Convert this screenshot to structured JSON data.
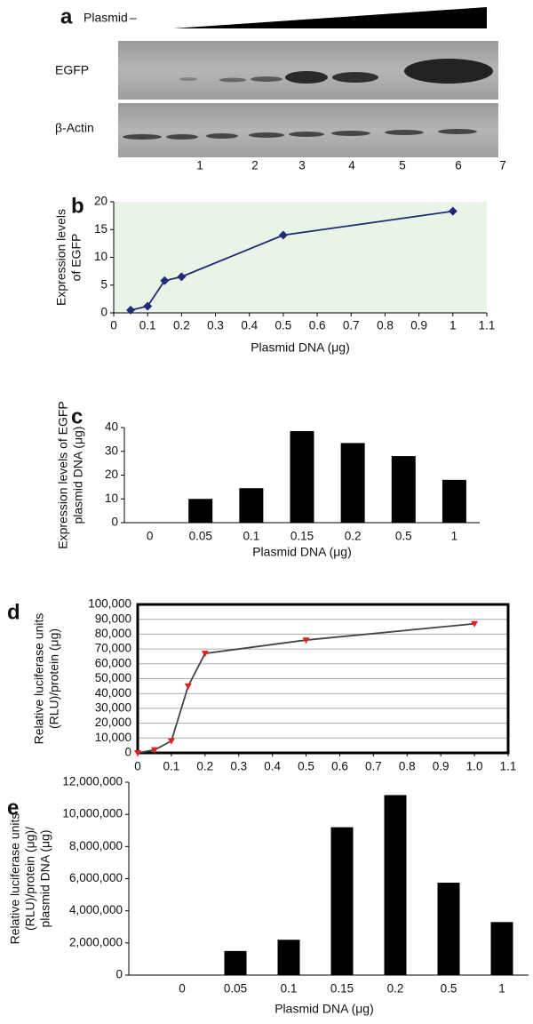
{
  "blot": {
    "label": "a",
    "plasmid": "Plasmid",
    "minus": "–",
    "rows": [
      "EGFP",
      "β-Actin"
    ],
    "lanes": [
      1,
      2,
      3,
      4,
      5,
      6,
      7
    ]
  },
  "chart_data": [
    {
      "type": "line",
      "label": "b",
      "ylabel": [
        "Expression levels",
        "of EGFP"
      ],
      "xlabel": "Plasmid DNA (μg)",
      "x": [
        0.05,
        0.1,
        0.15,
        0.2,
        0.5,
        1
      ],
      "values": [
        0.5,
        1.2,
        5.8,
        6.5,
        14,
        18.3
      ],
      "color": "#1f2a7a",
      "marker_color": "#1f2a7a",
      "marker": "diamond",
      "background": "#eaf4e6",
      "xlim": [
        0,
        1.1
      ],
      "xticks": [
        0,
        0.1,
        0.2,
        0.3,
        0.4,
        0.5,
        0.6,
        0.7,
        0.8,
        0.9,
        1,
        1.1
      ],
      "ylim": [
        0,
        20
      ],
      "yticks": [
        0,
        5,
        10,
        15,
        20
      ],
      "grid": false
    },
    {
      "type": "bar",
      "label": "c",
      "ylabel": [
        "Expression levels of EGFP",
        "plasmid DNA (μg)"
      ],
      "xlabel": "Plasmid DNA (μg)",
      "categories": [
        "0",
        "0.05",
        "0.1",
        "0.15",
        "0.2",
        "0.5",
        "1"
      ],
      "values": [
        0,
        10,
        14.5,
        38.5,
        33.5,
        28,
        18
      ],
      "color": "#000000",
      "ylim": [
        0,
        40
      ],
      "yticks": [
        0,
        10,
        20,
        30,
        40
      ],
      "grid": false
    },
    {
      "type": "line",
      "label": "d",
      "ylabel": [
        "Relative luciferase units",
        "(RLU)/protein (μg)"
      ],
      "x": [
        0,
        0.05,
        0.1,
        0.15,
        0.2,
        0.5,
        1.0
      ],
      "values": [
        0,
        2000,
        8000,
        45000,
        67000,
        76000,
        87000
      ],
      "color": "#444444",
      "marker_color": "#e8201c",
      "marker": "triangle",
      "xlim": [
        0,
        1.1
      ],
      "xticks": [
        0,
        0.1,
        0.2,
        0.3,
        0.4,
        0.5,
        0.6,
        0.7,
        0.8,
        0.9,
        {
          "value": 1,
          "label": "1.0"
        },
        1.1
      ],
      "ylim": [
        0,
        100000
      ],
      "yticks": [
        0,
        {
          "value": 10000,
          "label": "10,000"
        },
        {
          "value": 20000,
          "label": "20,000"
        },
        {
          "value": 30000,
          "label": "30,000"
        },
        {
          "value": 40000,
          "label": "40,000"
        },
        {
          "value": 50000,
          "label": "50,000"
        },
        {
          "value": 60000,
          "label": "60,000"
        },
        {
          "value": 70000,
          "label": "70,000"
        },
        {
          "value": 80000,
          "label": "80,000"
        },
        {
          "value": 90000,
          "label": "90,000"
        },
        {
          "value": 100000,
          "label": "100,000"
        }
      ],
      "grid": true
    },
    {
      "type": "bar",
      "label": "e",
      "ylabel": [
        "Relative luciferase units",
        "(RLU)/protein (μg)/",
        "plasmid DNA (μg)"
      ],
      "xlabel": "Plasmid DNA (μg)",
      "categories": [
        "0",
        "0.05",
        "0.1",
        "0.15",
        "0.2",
        "0.5",
        "1"
      ],
      "values": [
        0,
        1500000,
        2200000,
        9200000,
        11200000,
        5750000,
        3300000
      ],
      "color": "#000000",
      "ylim": [
        0,
        12000000
      ],
      "yticks": [
        0,
        {
          "value": 2000000,
          "label": "2,000,000"
        },
        {
          "value": 4000000,
          "label": "4,000,000"
        },
        {
          "value": 6000000,
          "label": "6,000,000"
        },
        {
          "value": 8000000,
          "label": "8,000,000"
        },
        {
          "value": 10000000,
          "label": "10,000,000"
        },
        {
          "value": 12000000,
          "label": "12,000,000"
        }
      ],
      "grid": false
    }
  ]
}
